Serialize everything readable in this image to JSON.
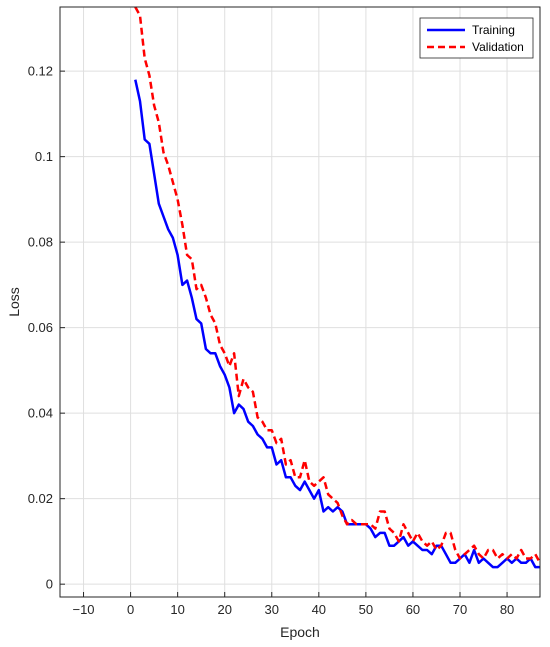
{
  "chart_data": {
    "type": "line",
    "xlabel": "Epoch",
    "ylabel": "Loss",
    "xlim": [
      -15,
      87
    ],
    "ylim": [
      -0.003,
      0.135
    ],
    "xticks": [
      -10,
      0,
      10,
      20,
      30,
      40,
      50,
      60,
      70,
      80
    ],
    "xtick_labels": [
      "−10",
      "0",
      "10",
      "20",
      "30",
      "40",
      "50",
      "60",
      "70",
      "80"
    ],
    "yticks": [
      0,
      0.02,
      0.04,
      0.06,
      0.08,
      0.1,
      0.12
    ],
    "ytick_labels": [
      "0",
      "0.02",
      "0.04",
      "0.06",
      "0.08",
      "0.1",
      "0.12"
    ],
    "grid": true,
    "legend_position": "top-right",
    "series": [
      {
        "name": "Training",
        "color": "#0000ff",
        "style": "solid",
        "x": [
          1,
          2,
          3,
          4,
          5,
          6,
          7,
          8,
          9,
          10,
          11,
          12,
          13,
          14,
          15,
          16,
          17,
          18,
          19,
          20,
          21,
          22,
          23,
          24,
          25,
          26,
          27,
          28,
          29,
          30,
          31,
          32,
          33,
          34,
          35,
          36,
          37,
          38,
          39,
          40,
          41,
          42,
          43,
          44,
          45,
          46,
          47,
          48,
          49,
          50,
          51,
          52,
          53,
          54,
          55,
          56,
          57,
          58,
          59,
          60,
          61,
          62,
          63,
          64,
          65,
          66,
          67,
          68,
          69,
          70,
          71,
          72,
          73,
          74,
          75,
          76,
          77,
          78,
          79,
          80,
          81,
          82,
          83,
          84,
          85,
          86,
          87
        ],
        "y": [
          0.118,
          0.113,
          0.104,
          0.103,
          0.096,
          0.089,
          0.086,
          0.083,
          0.081,
          0.077,
          0.07,
          0.071,
          0.067,
          0.062,
          0.061,
          0.055,
          0.054,
          0.054,
          0.051,
          0.049,
          0.046,
          0.04,
          0.042,
          0.041,
          0.038,
          0.037,
          0.035,
          0.034,
          0.032,
          0.032,
          0.028,
          0.029,
          0.025,
          0.025,
          0.023,
          0.022,
          0.024,
          0.022,
          0.02,
          0.022,
          0.017,
          0.018,
          0.017,
          0.018,
          0.017,
          0.014,
          0.014,
          0.014,
          0.014,
          0.014,
          0.013,
          0.011,
          0.012,
          0.012,
          0.009,
          0.009,
          0.01,
          0.011,
          0.009,
          0.01,
          0.009,
          0.008,
          0.008,
          0.007,
          0.009,
          0.009,
          0.007,
          0.005,
          0.005,
          0.006,
          0.007,
          0.005,
          0.008,
          0.005,
          0.006,
          0.005,
          0.004,
          0.004,
          0.005,
          0.006,
          0.005,
          0.006,
          0.005,
          0.005,
          0.006,
          0.004,
          0.004
        ]
      },
      {
        "name": "Validation",
        "color": "#ff0000",
        "style": "dashed",
        "x": [
          1,
          2,
          3,
          4,
          5,
          6,
          7,
          8,
          9,
          10,
          11,
          12,
          13,
          14,
          15,
          16,
          17,
          18,
          19,
          20,
          21,
          22,
          23,
          24,
          25,
          26,
          27,
          28,
          29,
          30,
          31,
          32,
          33,
          34,
          35,
          36,
          37,
          38,
          39,
          40,
          41,
          42,
          43,
          44,
          45,
          46,
          47,
          48,
          49,
          50,
          51,
          52,
          53,
          54,
          55,
          56,
          57,
          58,
          59,
          60,
          61,
          62,
          63,
          64,
          65,
          66,
          67,
          68,
          69,
          70,
          71,
          72,
          73,
          74,
          75,
          76,
          77,
          78,
          79,
          80,
          81,
          82,
          83,
          84,
          85,
          86,
          87
        ],
        "y": [
          0.135,
          0.133,
          0.123,
          0.119,
          0.112,
          0.108,
          0.101,
          0.098,
          0.094,
          0.09,
          0.084,
          0.077,
          0.076,
          0.069,
          0.07,
          0.067,
          0.063,
          0.061,
          0.056,
          0.054,
          0.051,
          0.054,
          0.044,
          0.048,
          0.046,
          0.045,
          0.039,
          0.038,
          0.036,
          0.036,
          0.033,
          0.034,
          0.028,
          0.029,
          0.025,
          0.025,
          0.029,
          0.024,
          0.023,
          0.024,
          0.025,
          0.021,
          0.02,
          0.019,
          0.016,
          0.014,
          0.015,
          0.014,
          0.014,
          0.014,
          0.014,
          0.013,
          0.017,
          0.017,
          0.013,
          0.012,
          0.01,
          0.014,
          0.012,
          0.01,
          0.012,
          0.01,
          0.009,
          0.01,
          0.008,
          0.009,
          0.012,
          0.012,
          0.008,
          0.006,
          0.007,
          0.008,
          0.009,
          0.007,
          0.006,
          0.008,
          0.008,
          0.006,
          0.007,
          0.006,
          0.007,
          0.006,
          0.008,
          0.006,
          0.006,
          0.007,
          0.005
        ]
      }
    ]
  }
}
